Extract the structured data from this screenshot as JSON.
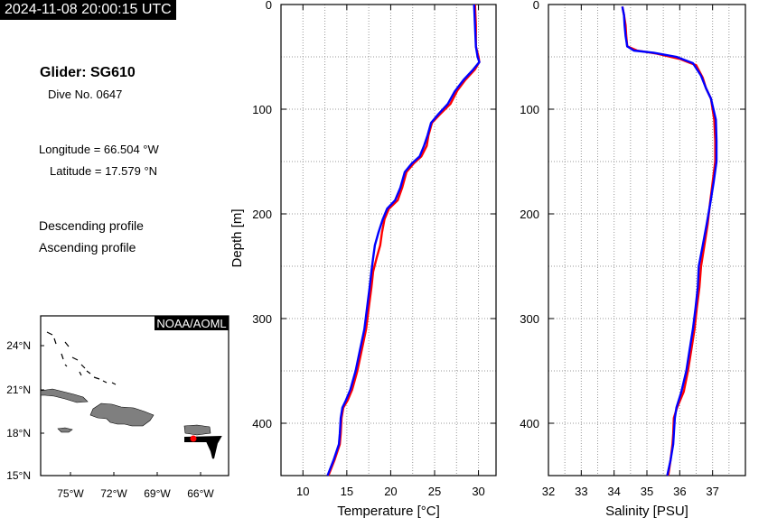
{
  "timestamp": "2024-11-08 20:00:15 UTC",
  "glider": "Glider: SG610",
  "dive": "Dive No. 0647",
  "longitude": "Longitude = 66.504 °W",
  "latitude": "Latitude = 17.579 °N",
  "legend": {
    "descending": "Descending profile",
    "ascending": "Ascending profile"
  },
  "colors": {
    "descending": "#ff0000",
    "ascending": "#0000ff"
  },
  "map": {
    "credit": "NOAA/AOML",
    "lat_ticks": [
      "24°N",
      "21°N",
      "18°N",
      "15°N"
    ],
    "lon_ticks": [
      "75°W",
      "72°W",
      "69°W",
      "66°W"
    ]
  },
  "chart_data": [
    {
      "type": "line",
      "xlabel": "Temperature [°C]",
      "ylabel": "Depth [m]",
      "xlim": [
        7.5,
        32
      ],
      "ylim": [
        0,
        450
      ],
      "y_inverted": true,
      "x_ticks": [
        10,
        15,
        20,
        25,
        30
      ],
      "y_ticks": [
        0,
        100,
        200,
        300,
        400
      ],
      "series": [
        {
          "name": "Descending profile",
          "points": [
            [
              29.6,
              0
            ],
            [
              29.7,
              20
            ],
            [
              29.7,
              40
            ],
            [
              30.0,
              50
            ],
            [
              30.1,
              55
            ],
            [
              29.6,
              62
            ],
            [
              28.5,
              72
            ],
            [
              27.6,
              82
            ],
            [
              26.8,
              95
            ],
            [
              25.6,
              105
            ],
            [
              24.7,
              113
            ],
            [
              24.3,
              125
            ],
            [
              24.1,
              135
            ],
            [
              23.5,
              145
            ],
            [
              22.6,
              152
            ],
            [
              21.8,
              160
            ],
            [
              21.3,
              175
            ],
            [
              20.8,
              187
            ],
            [
              19.8,
              195
            ],
            [
              19.3,
              205
            ],
            [
              19.0,
              218
            ],
            [
              18.8,
              230
            ],
            [
              18.4,
              242
            ],
            [
              18.0,
              255
            ],
            [
              17.8,
              270
            ],
            [
              17.5,
              290
            ],
            [
              17.2,
              310
            ],
            [
              16.7,
              330
            ],
            [
              16.2,
              350
            ],
            [
              15.6,
              368
            ],
            [
              15.1,
              378
            ],
            [
              14.6,
              385
            ],
            [
              14.4,
              395
            ],
            [
              14.3,
              410
            ],
            [
              14.2,
              420
            ],
            [
              13.6,
              435
            ],
            [
              12.9,
              450
            ]
          ]
        },
        {
          "name": "Ascending profile",
          "points": [
            [
              29.5,
              0
            ],
            [
              29.6,
              20
            ],
            [
              29.7,
              40
            ],
            [
              29.9,
              50
            ],
            [
              30.1,
              55
            ],
            [
              29.3,
              63
            ],
            [
              28.3,
              72
            ],
            [
              27.3,
              83
            ],
            [
              26.5,
              95
            ],
            [
              25.4,
              105
            ],
            [
              24.6,
              113
            ],
            [
              24.2,
              125
            ],
            [
              23.8,
              135
            ],
            [
              23.3,
              145
            ],
            [
              22.4,
              152
            ],
            [
              21.6,
              160
            ],
            [
              21.1,
              175
            ],
            [
              20.5,
              187
            ],
            [
              19.6,
              195
            ],
            [
              19.1,
              205
            ],
            [
              18.6,
              218
            ],
            [
              18.2,
              230
            ],
            [
              18.0,
              242
            ],
            [
              17.8,
              255
            ],
            [
              17.6,
              270
            ],
            [
              17.3,
              290
            ],
            [
              17.0,
              310
            ],
            [
              16.5,
              330
            ],
            [
              16.0,
              350
            ],
            [
              15.4,
              368
            ],
            [
              14.9,
              378
            ],
            [
              14.5,
              385
            ],
            [
              14.3,
              395
            ],
            [
              14.2,
              410
            ],
            [
              14.1,
              420
            ],
            [
              13.5,
              435
            ],
            [
              12.8,
              450
            ]
          ]
        }
      ]
    },
    {
      "type": "line",
      "xlabel": "Salinity [PSU]",
      "ylabel": "",
      "xlim": [
        32,
        38
      ],
      "ylim": [
        0,
        450
      ],
      "y_inverted": true,
      "x_ticks": [
        32,
        33,
        34,
        35,
        36,
        37
      ],
      "y_ticks": [
        0,
        100,
        200,
        300,
        400
      ],
      "series": [
        {
          "name": "Descending profile",
          "points": [
            [
              34.25,
              2
            ],
            [
              34.3,
              10
            ],
            [
              34.35,
              20
            ],
            [
              34.37,
              30
            ],
            [
              34.4,
              40
            ],
            [
              34.7,
              44
            ],
            [
              35.3,
              47
            ],
            [
              36.0,
              52
            ],
            [
              36.5,
              58
            ],
            [
              36.7,
              70
            ],
            [
              36.8,
              80
            ],
            [
              36.95,
              90
            ],
            [
              37.05,
              110
            ],
            [
              37.08,
              130
            ],
            [
              37.08,
              150
            ],
            [
              37.0,
              170
            ],
            [
              36.92,
              190
            ],
            [
              36.85,
              210
            ],
            [
              36.75,
              230
            ],
            [
              36.65,
              250
            ],
            [
              36.6,
              270
            ],
            [
              36.52,
              290
            ],
            [
              36.45,
              310
            ],
            [
              36.35,
              330
            ],
            [
              36.25,
              350
            ],
            [
              36.12,
              370
            ],
            [
              35.92,
              385
            ],
            [
              35.82,
              395
            ],
            [
              35.8,
              410
            ],
            [
              35.78,
              420
            ],
            [
              35.72,
              435
            ],
            [
              35.65,
              450
            ]
          ]
        },
        {
          "name": "Ascending profile",
          "points": [
            [
              34.25,
              2
            ],
            [
              34.3,
              10
            ],
            [
              34.32,
              20
            ],
            [
              34.35,
              30
            ],
            [
              34.4,
              40
            ],
            [
              34.6,
              44
            ],
            [
              35.2,
              46
            ],
            [
              35.9,
              50
            ],
            [
              36.4,
              56
            ],
            [
              36.65,
              68
            ],
            [
              36.8,
              80
            ],
            [
              36.95,
              90
            ],
            [
              37.1,
              110
            ],
            [
              37.12,
              130
            ],
            [
              37.12,
              150
            ],
            [
              37.03,
              170
            ],
            [
              36.93,
              190
            ],
            [
              36.82,
              210
            ],
            [
              36.7,
              230
            ],
            [
              36.58,
              250
            ],
            [
              36.55,
              270
            ],
            [
              36.48,
              290
            ],
            [
              36.4,
              310
            ],
            [
              36.3,
              330
            ],
            [
              36.2,
              350
            ],
            [
              36.05,
              370
            ],
            [
              35.9,
              385
            ],
            [
              35.85,
              395
            ],
            [
              35.82,
              410
            ],
            [
              35.8,
              420
            ],
            [
              35.72,
              435
            ],
            [
              35.62,
              450
            ]
          ]
        }
      ]
    }
  ]
}
